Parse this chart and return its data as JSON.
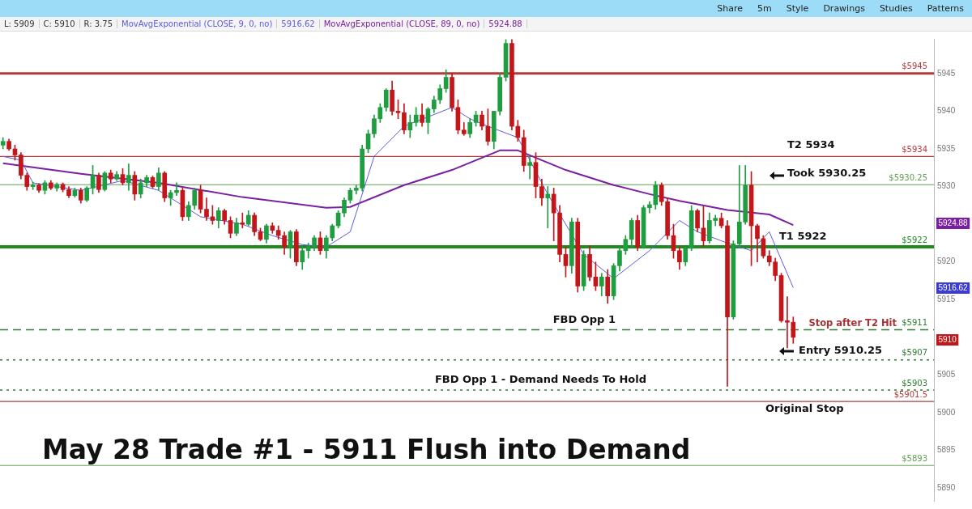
{
  "chart_data": {
    "type": "candlestick",
    "title": "May 28 Trade #1 - 5911 Flush into Demand",
    "categories": [
      null,
      null,
      null,
      null,
      null,
      null,
      null,
      null,
      null,
      null,
      null,
      null,
      null,
      null,
      null,
      null,
      null,
      null,
      null,
      null,
      null,
      null,
      null,
      null,
      null,
      null,
      null,
      null,
      null,
      null,
      null,
      null,
      null,
      null,
      null,
      null,
      null,
      null,
      null,
      null,
      null,
      null,
      null,
      null,
      null,
      null,
      null,
      null,
      null,
      null,
      null,
      null,
      null,
      null,
      null,
      null,
      null,
      null,
      null,
      null,
      null,
      null,
      null,
      null,
      null,
      null,
      null,
      null,
      null,
      null,
      null,
      null,
      null,
      null,
      null,
      null,
      null,
      null,
      null,
      null,
      null,
      null,
      null,
      null,
      null,
      null,
      null,
      null,
      null,
      null,
      null,
      null,
      null,
      null,
      null,
      null,
      null,
      null,
      null,
      null,
      null,
      null,
      null,
      null,
      null,
      null,
      null,
      null,
      null,
      null,
      null,
      null,
      null,
      null,
      null,
      null,
      null,
      null,
      null,
      null,
      null,
      null,
      null,
      null,
      null,
      null,
      null,
      null,
      null,
      null,
      null,
      null,
      null,
      null,
      null,
      null,
      null,
      null,
      null,
      null,
      null,
      null,
      null,
      null,
      null,
      null,
      null,
      null,
      null,
      null,
      null,
      null,
      null,
      null,
      null,
      null
    ],
    "ohlc": [
      [
        5935.5,
        5936.5,
        5935,
        5936
      ],
      [
        5936,
        5936.3,
        5934.8,
        5935
      ],
      [
        5935,
        5935.5,
        5933.5,
        5934.2
      ],
      [
        5934.2,
        5934.5,
        5931,
        5931.5
      ],
      [
        5931.5,
        5931.8,
        5929.5,
        5930
      ],
      [
        5930,
        5930.6,
        5929.6,
        5930.2
      ],
      [
        5930.2,
        5930.4,
        5929.2,
        5929.5
      ],
      [
        5929.5,
        5930.8,
        5929,
        5930.5
      ],
      [
        5930.5,
        5930.8,
        5929.6,
        5929.8
      ],
      [
        5929.8,
        5930.5,
        5929.4,
        5930.3
      ],
      [
        5930.3,
        5930.5,
        5929.3,
        5929.6
      ],
      [
        5929.6,
        5930,
        5928.5,
        5928.8
      ],
      [
        5928.8,
        5929.8,
        5928.6,
        5929.5
      ],
      [
        5929.5,
        5929.8,
        5927.8,
        5928.2
      ],
      [
        5928.2,
        5930,
        5928,
        5929.8
      ],
      [
        5929.8,
        5932.8,
        5929,
        5931.5
      ],
      [
        5931.5,
        5931.8,
        5929.2,
        5929.6
      ],
      [
        5929.6,
        5932,
        5929.4,
        5931.8
      ],
      [
        5931.8,
        5932.2,
        5930.5,
        5931
      ],
      [
        5931,
        5932,
        5930.8,
        5931.6
      ],
      [
        5931.6,
        5932.4,
        5930.2,
        5930.5
      ],
      [
        5930.5,
        5933,
        5929.5,
        5931.5
      ],
      [
        5931.5,
        5932,
        5928.2,
        5929
      ],
      [
        5929,
        5931,
        5928.5,
        5930.5
      ],
      [
        5930.5,
        5931.5,
        5930,
        5931.2
      ],
      [
        5931.2,
        5931.4,
        5929.8,
        5930
      ],
      [
        5930,
        5932.5,
        5929.5,
        5931.8
      ],
      [
        5931.8,
        5932,
        5928,
        5928.5
      ],
      [
        5928.5,
        5929.5,
        5927.5,
        5929.2
      ],
      [
        5929.2,
        5930.5,
        5928.8,
        5929.5
      ],
      [
        5929.5,
        5929.8,
        5925.5,
        5926
      ],
      [
        5926,
        5928,
        5925.5,
        5927.5
      ],
      [
        5927.5,
        5929.8,
        5927,
        5929.5
      ],
      [
        5929.5,
        5930.2,
        5926.5,
        5927
      ],
      [
        5927,
        5928.5,
        5925.5,
        5926
      ],
      [
        5926,
        5927.5,
        5925,
        5925.5
      ],
      [
        5925.5,
        5927.2,
        5924.5,
        5926.8
      ],
      [
        5926.8,
        5927,
        5925,
        5925.5
      ],
      [
        5925.5,
        5926,
        5923.2,
        5923.8
      ],
      [
        5923.8,
        5925.8,
        5923.5,
        5925.2
      ],
      [
        5925.2,
        5926.5,
        5924.5,
        5925
      ],
      [
        5925,
        5926.8,
        5924.8,
        5926.2
      ],
      [
        5926.2,
        5926.5,
        5923.5,
        5924
      ],
      [
        5924,
        5924.5,
        5922.8,
        5923
      ],
      [
        5923,
        5925,
        5922.5,
        5924.8
      ],
      [
        5924.8,
        5925.2,
        5923.8,
        5924.2
      ],
      [
        5924.2,
        5924.8,
        5923,
        5923.5
      ],
      [
        5923.5,
        5924,
        5921,
        5922
      ],
      [
        5922,
        5924.2,
        5920.5,
        5924
      ],
      [
        5924,
        5924.3,
        5919.5,
        5920
      ],
      [
        5920,
        5922,
        5919,
        5921.5
      ],
      [
        5921.5,
        5922.5,
        5920.5,
        5922
      ],
      [
        5922,
        5923.5,
        5921.5,
        5923.2
      ],
      [
        5923.2,
        5924,
        5921,
        5921.5
      ],
      [
        5921.5,
        5923.5,
        5920.5,
        5923.2
      ],
      [
        5923.2,
        5925,
        5922.8,
        5924.8
      ],
      [
        5924.8,
        5926.8,
        5924.5,
        5926.5
      ],
      [
        5926.5,
        5928.5,
        5926,
        5928.2
      ],
      [
        5928.2,
        5929.8,
        5927.8,
        5929.5
      ],
      [
        5929.5,
        5930.2,
        5929,
        5929.8
      ],
      [
        5929.8,
        5935.5,
        5929.4,
        5935
      ],
      [
        5935,
        5937.5,
        5934.5,
        5937
      ],
      [
        5937,
        5939.5,
        5936.5,
        5939
      ],
      [
        5939,
        5941,
        5938.5,
        5940.5
      ],
      [
        5940.5,
        5943,
        5940,
        5942.8
      ],
      [
        5942.8,
        5944,
        5939.5,
        5940
      ],
      [
        5940,
        5941.5,
        5939,
        5939.8
      ],
      [
        5939.8,
        5941,
        5937,
        5937.5
      ],
      [
        5937.5,
        5939.5,
        5936.5,
        5938.5
      ],
      [
        5938.5,
        5940.5,
        5938,
        5939.5
      ],
      [
        5939.5,
        5941,
        5938,
        5938.5
      ],
      [
        5938.5,
        5940.5,
        5937,
        5940.3
      ],
      [
        5940.3,
        5942,
        5939.8,
        5941.5
      ],
      [
        5941.5,
        5943.5,
        5941,
        5943
      ],
      [
        5943,
        5945.5,
        5942.5,
        5944.5
      ],
      [
        5944.5,
        5945,
        5940,
        5940.5
      ],
      [
        5940.5,
        5941.5,
        5937,
        5937.5
      ],
      [
        5937.5,
        5938.5,
        5936.8,
        5937
      ],
      [
        5937,
        5939,
        5936.5,
        5938.5
      ],
      [
        5938.5,
        5940,
        5938,
        5939.5
      ],
      [
        5939.5,
        5940,
        5937.5,
        5938
      ],
      [
        5938,
        5940.3,
        5935.5,
        5936
      ],
      [
        5936,
        5940,
        5935,
        5940
      ],
      [
        5940,
        5945,
        5939.5,
        5944.5
      ],
      [
        5944.5,
        5949.5,
        5944,
        5949
      ],
      [
        5949,
        5949.5,
        5937.5,
        5938
      ],
      [
        5938,
        5938.8,
        5936,
        5936.5
      ],
      [
        5936.5,
        5937.5,
        5932,
        5932.8
      ],
      [
        5932.8,
        5934,
        5931,
        5933.2
      ],
      [
        5933.2,
        5934.5,
        5928.5,
        5930
      ],
      [
        5930,
        5931,
        5927.5,
        5928.5
      ],
      [
        5928.5,
        5930,
        5924.5,
        5929
      ],
      [
        5929,
        5929.8,
        5922.8,
        5926.5
      ],
      [
        5926.5,
        5927.5,
        5920,
        5921
      ],
      [
        5921,
        5922,
        5918,
        5919.5
      ],
      [
        5919.5,
        5925.8,
        5918.5,
        5925.3
      ],
      [
        5925.3,
        5925.8,
        5916,
        5916.8
      ],
      [
        5916.8,
        5921.5,
        5916.2,
        5921
      ],
      [
        5921,
        5922.2,
        5917.5,
        5918
      ],
      [
        5918,
        5920,
        5916.2,
        5916.8
      ],
      [
        5916.8,
        5918.5,
        5915.5,
        5918
      ],
      [
        5918,
        5919,
        5914.5,
        5915.5
      ],
      [
        5915.5,
        5919.8,
        5915,
        5919.5
      ],
      [
        5919.5,
        5922,
        5918.8,
        5921.5
      ],
      [
        5921.5,
        5923.5,
        5921,
        5923
      ],
      [
        5923,
        5925.8,
        5922,
        5925.5
      ],
      [
        5925.5,
        5926.2,
        5921.5,
        5922
      ],
      [
        5922,
        5927.5,
        5921.8,
        5927.2
      ],
      [
        5927.2,
        5928,
        5926.5,
        5927.6
      ],
      [
        5927.6,
        5930.7,
        5927,
        5930.2
      ],
      [
        5930.2,
        5930.5,
        5927.5,
        5928
      ],
      [
        5928,
        5928.5,
        5923,
        5923.5
      ],
      [
        5923.5,
        5925,
        5920.5,
        5921.5
      ],
      [
        5921.5,
        5922,
        5919,
        5920
      ],
      [
        5920,
        5922,
        5919.5,
        5921.8
      ],
      [
        5921.8,
        5927.5,
        5921.5,
        5926.8
      ],
      [
        5926.8,
        5927,
        5924,
        5924.5
      ],
      [
        5924.5,
        5927.5,
        5922,
        5922.8
      ],
      [
        5922.8,
        5926.5,
        5922.5,
        5925.5
      ],
      [
        5925.5,
        5926.2,
        5924.8,
        5925.8
      ],
      [
        5925.8,
        5926.5,
        5924.5,
        5924.8
      ],
      [
        5924.8,
        5925.5,
        5903.5,
        5912.7
      ],
      [
        5912.7,
        5922.8,
        5912.4,
        5922.4
      ],
      [
        5922.4,
        5932.8,
        5922,
        5925.3
      ],
      [
        5925.3,
        5932.8,
        5925,
        5930.2
      ],
      [
        5930.2,
        5932,
        5919.5,
        5924.8
      ],
      [
        5924.8,
        5925,
        5920,
        5923.1
      ],
      [
        5923.1,
        5923.5,
        5920.5,
        5920.8
      ],
      [
        5920.8,
        5921.5,
        5919.5,
        5920
      ],
      [
        5920,
        5920.5,
        5917.5,
        5918.2
      ],
      [
        5918.2,
        5918.5,
        5912,
        5912.2
      ],
      [
        5912.2,
        5915.4,
        5908.6,
        5912
      ],
      [
        5912,
        5912.7,
        5909.2,
        5910
      ],
      null,
      null,
      null,
      null,
      null,
      null,
      null,
      null,
      null,
      null,
      null,
      null,
      null,
      null,
      null,
      null,
      null,
      null,
      null,
      null,
      null,
      null,
      null
    ],
    "series": [
      {
        "name": "MovAvgExponential (CLOSE, 9, 0, no)",
        "type": "line",
        "color": "#5c5ce0",
        "values": [
          5934,
          null,
          null,
          5933.5,
          null,
          5930.5,
          null,
          null,
          null,
          null,
          null,
          null,
          null,
          5929.5,
          null,
          null,
          null,
          null,
          null,
          null,
          5930.8,
          null,
          null,
          null,
          null,
          null,
          5929.5,
          null,
          null,
          null,
          null,
          null,
          null,
          5926,
          null,
          null,
          null,
          null,
          null,
          null,
          5925,
          null,
          null,
          null,
          null,
          5923.5,
          null,
          null,
          null,
          null,
          5922.3,
          null,
          null,
          null,
          5922,
          null,
          null,
          null,
          5924,
          null,
          null,
          null,
          5934,
          null,
          null,
          null,
          null,
          5938,
          null,
          null,
          null,
          null,
          null,
          null,
          null,
          5940.5,
          null,
          null,
          5939,
          null,
          null,
          5938,
          null,
          null,
          null,
          null,
          5936.5,
          null,
          null,
          null,
          null,
          5929,
          null,
          null,
          null,
          null,
          null,
          5921,
          null,
          null,
          null,
          null,
          5917.8,
          null,
          null,
          null,
          null,
          null,
          5921.5,
          null,
          null,
          null,
          null,
          5925.5,
          null,
          null,
          5924,
          null,
          null,
          null,
          null,
          5922.5,
          null,
          null,
          null,
          5921.5,
          null,
          null,
          5924,
          null,
          null,
          null,
          5916.6,
          null,
          null,
          null,
          null,
          null,
          null,
          null,
          null,
          null,
          null,
          null,
          null,
          null,
          null,
          null,
          null,
          null,
          null,
          null,
          null,
          null,
          null,
          null
        ]
      },
      {
        "name": "MovAvgExponential (CLOSE, 89, 0, no)",
        "type": "line",
        "color": "#7b1fa2",
        "values": [
          5933.1,
          null,
          null,
          null,
          null,
          null,
          null,
          null,
          null,
          null,
          null,
          null,
          null,
          5931.7,
          null,
          null,
          null,
          null,
          null,
          null,
          null,
          null,
          null,
          null,
          null,
          null,
          5930.5,
          null,
          null,
          null,
          null,
          null,
          null,
          null,
          null,
          null,
          null,
          null,
          null,
          null,
          5928.6,
          null,
          null,
          null,
          null,
          null,
          null,
          null,
          null,
          null,
          null,
          null,
          null,
          null,
          5927.2,
          null,
          null,
          null,
          5927.3,
          null,
          null,
          null,
          null,
          null,
          null,
          null,
          null,
          5930.2,
          null,
          null,
          null,
          null,
          null,
          null,
          null,
          5932.2,
          null,
          null,
          null,
          null,
          null,
          null,
          null,
          5934.8,
          null,
          null,
          5934.8,
          null,
          null,
          null,
          null,
          null,
          null,
          null,
          5932.2,
          null,
          null,
          null,
          null,
          null,
          null,
          null,
          5930.2,
          null,
          null,
          null,
          null,
          null,
          5929,
          null,
          null,
          null,
          null,
          5928.1,
          null,
          null,
          null,
          null,
          null,
          null,
          null,
          5926.9,
          null,
          null,
          null,
          null,
          null,
          null,
          5926.3,
          null,
          null,
          null,
          5924.9,
          null,
          null,
          null,
          null,
          null,
          null,
          null,
          null,
          null,
          null,
          null,
          null,
          null,
          null,
          null,
          null,
          null,
          null,
          null,
          null,
          null,
          null,
          null
        ]
      }
    ],
    "ylim": [
      5888.3,
      5949.6
    ],
    "yticks": [
      5890,
      5895,
      5900,
      5905,
      5915,
      5920,
      5930,
      5935,
      5940,
      5945
    ],
    "tick_labels": "y",
    "legend": "top",
    "ref_lines": [
      {
        "axis": "y",
        "value": 5945,
        "label": "$5945",
        "color": "#b23a3a"
      },
      {
        "axis": "y",
        "value": 5934,
        "label": "$5934",
        "color": "#b23a3a"
      },
      {
        "axis": "y",
        "value": 5930.25,
        "label": "$5930.25",
        "color": "#5fa052"
      },
      {
        "axis": "y",
        "value": 5922,
        "label": "$5922",
        "color": "#1f8a1f"
      },
      {
        "axis": "y",
        "value": 5911,
        "label": "$5911",
        "color": "#2e7d32",
        "line_style": "dashed"
      },
      {
        "axis": "y",
        "value": 5907,
        "label": "$5907",
        "color": "#2e7d32",
        "line_style": "dotted"
      },
      {
        "axis": "y",
        "value": 5903,
        "label": "$5903",
        "color": "#2e7d32",
        "line_style": "dotted"
      },
      {
        "axis": "y",
        "value": 5901.5,
        "label": "$5901.5",
        "color": "#b23a3a"
      },
      {
        "axis": "y",
        "value": 5893,
        "label": "$5893",
        "color": "#5fa052"
      }
    ],
    "annotations": [
      {
        "text": "T2 5934",
        "y": 5934
      },
      {
        "text": "Took 5930.25",
        "y": 5930.25
      },
      {
        "text": "T1 5922",
        "y": 5922
      },
      {
        "text": "FBD Opp 1",
        "y": 5911
      },
      {
        "text": "Stop after T2 Hit",
        "y": 5911
      },
      {
        "text": "FBD Opp 1 - Demand Needs To Hold",
        "y": 5903
      },
      {
        "text": "Original Stop",
        "y": 5901.5
      },
      "Entry 5910.25",
      "5924.88",
      "5916.62",
      "5910",
      "L: 5909",
      "C: 5910",
      "R: 3.75",
      "5916.62",
      "5924.88",
      "Share",
      "5m",
      "Style",
      "Drawings",
      "Studies",
      "Patterns"
    ]
  }
}
